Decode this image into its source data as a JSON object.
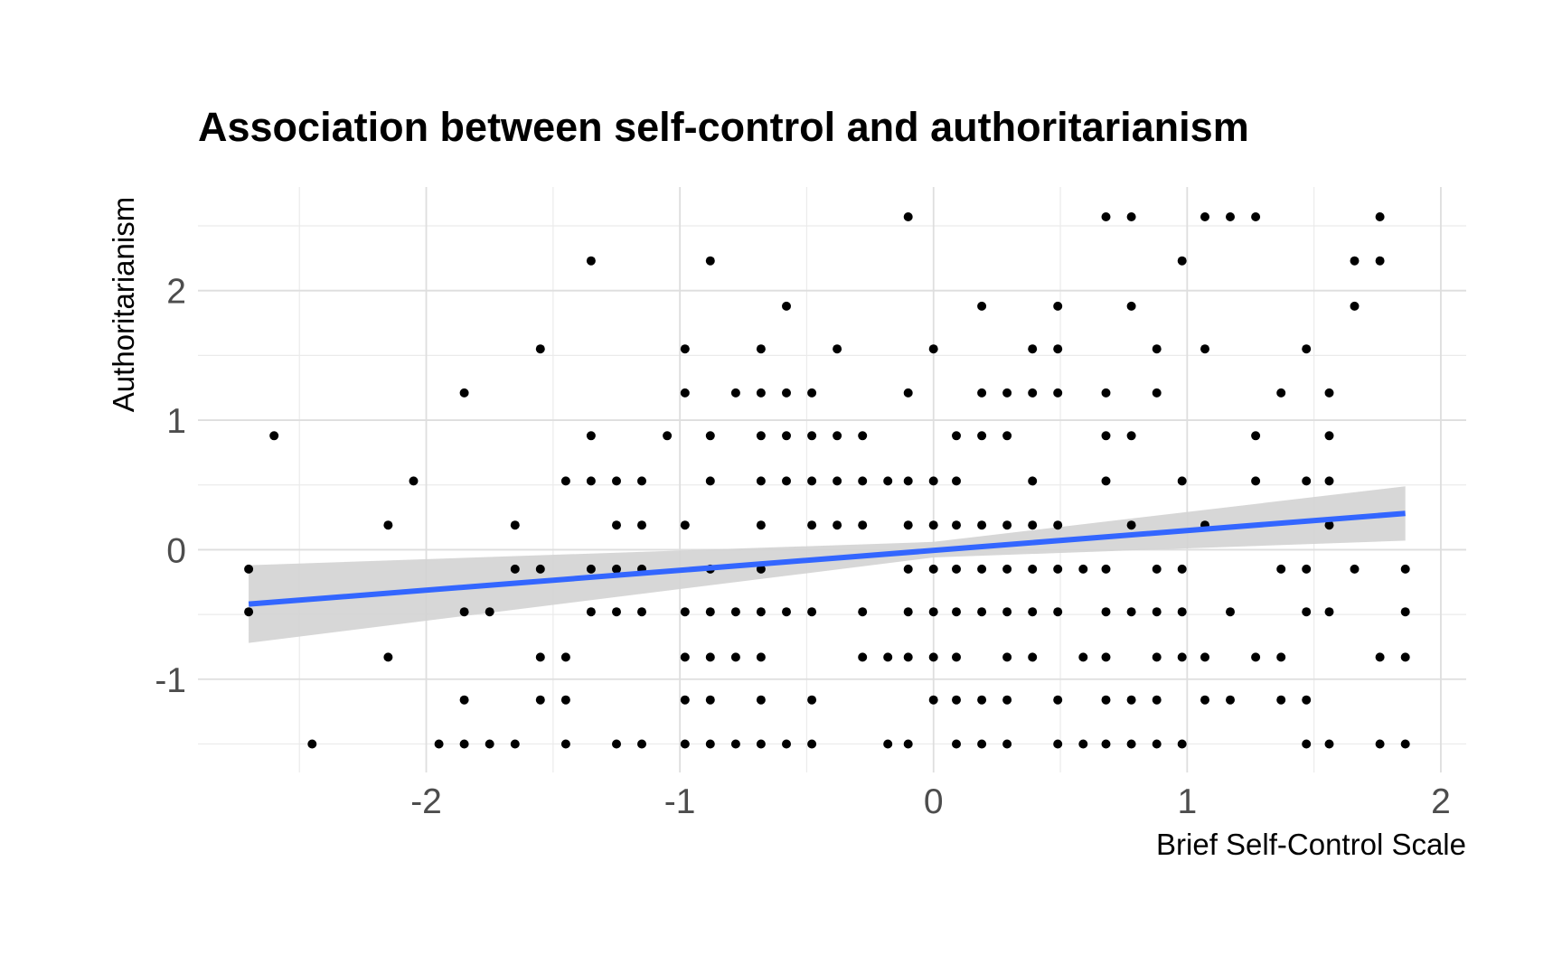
{
  "chart_data": {
    "type": "scatter",
    "title": "Association between self-control and authoritarianism",
    "xlabel": "Brief Self-Control Scale",
    "ylabel": "Authoritarianism",
    "xlim": [
      -2.9,
      2.1
    ],
    "ylim": [
      -1.72,
      2.8
    ],
    "x_ticks": [
      {
        "value": -2,
        "label": "-2"
      },
      {
        "value": -1,
        "label": "-1"
      },
      {
        "value": 0,
        "label": "0"
      },
      {
        "value": 1,
        "label": "1"
      },
      {
        "value": 2,
        "label": "2"
      }
    ],
    "y_ticks": [
      {
        "value": -1,
        "label": "-1"
      },
      {
        "value": 0,
        "label": "0"
      },
      {
        "value": 1,
        "label": "1"
      },
      {
        "value": 2,
        "label": "2"
      }
    ],
    "x_minor": [
      -2.5,
      -1.5,
      -0.5,
      0.5,
      1.5
    ],
    "y_minor": [
      -1.5,
      -0.5,
      0.5,
      1.5,
      2.5
    ],
    "grid": true,
    "point_color": "#000000",
    "points": [
      [
        -2.7,
        -0.15
      ],
      [
        -2.7,
        -0.48
      ],
      [
        -2.6,
        0.88
      ],
      [
        -2.45,
        -1.5
      ],
      [
        -2.15,
        0.19
      ],
      [
        -2.15,
        -0.83
      ],
      [
        -2.05,
        0.53
      ],
      [
        -1.95,
        -1.5
      ],
      [
        -1.85,
        1.21
      ],
      [
        -1.85,
        -0.48
      ],
      [
        -1.85,
        -1.16
      ],
      [
        -1.85,
        -1.5
      ],
      [
        -1.75,
        -0.48
      ],
      [
        -1.75,
        -1.5
      ],
      [
        -1.65,
        0.19
      ],
      [
        -1.65,
        -0.15
      ],
      [
        -1.65,
        -1.5
      ],
      [
        -1.55,
        1.55
      ],
      [
        -1.55,
        -0.15
      ],
      [
        -1.55,
        -0.83
      ],
      [
        -1.55,
        -1.16
      ],
      [
        -1.45,
        0.53
      ],
      [
        -1.45,
        -0.83
      ],
      [
        -1.45,
        -1.16
      ],
      [
        -1.45,
        -1.5
      ],
      [
        -1.35,
        2.23
      ],
      [
        -1.35,
        0.88
      ],
      [
        -1.35,
        0.53
      ],
      [
        -1.35,
        -0.15
      ],
      [
        -1.35,
        -0.48
      ],
      [
        -1.25,
        0.53
      ],
      [
        -1.25,
        0.19
      ],
      [
        -1.25,
        -0.15
      ],
      [
        -1.25,
        -0.48
      ],
      [
        -1.25,
        -1.5
      ],
      [
        -1.15,
        0.53
      ],
      [
        -1.15,
        0.19
      ],
      [
        -1.15,
        -0.15
      ],
      [
        -1.15,
        -0.48
      ],
      [
        -1.15,
        -1.5
      ],
      [
        -1.05,
        0.88
      ],
      [
        -0.98,
        1.55
      ],
      [
        -0.98,
        1.21
      ],
      [
        -0.98,
        0.19
      ],
      [
        -0.98,
        -0.48
      ],
      [
        -0.98,
        -0.83
      ],
      [
        -0.98,
        -1.16
      ],
      [
        -0.98,
        -1.5
      ],
      [
        -0.88,
        2.23
      ],
      [
        -0.88,
        0.88
      ],
      [
        -0.88,
        0.53
      ],
      [
        -0.88,
        -0.15
      ],
      [
        -0.88,
        -0.48
      ],
      [
        -0.88,
        -0.83
      ],
      [
        -0.88,
        -1.16
      ],
      [
        -0.88,
        -1.5
      ],
      [
        -0.78,
        1.21
      ],
      [
        -0.78,
        -0.48
      ],
      [
        -0.78,
        -0.83
      ],
      [
        -0.78,
        -1.5
      ],
      [
        -0.68,
        1.55
      ],
      [
        -0.68,
        1.21
      ],
      [
        -0.68,
        0.88
      ],
      [
        -0.68,
        0.53
      ],
      [
        -0.68,
        0.19
      ],
      [
        -0.68,
        -0.15
      ],
      [
        -0.68,
        -0.48
      ],
      [
        -0.68,
        -0.83
      ],
      [
        -0.68,
        -1.16
      ],
      [
        -0.68,
        -1.5
      ],
      [
        -0.58,
        1.88
      ],
      [
        -0.58,
        1.21
      ],
      [
        -0.58,
        0.88
      ],
      [
        -0.58,
        0.53
      ],
      [
        -0.58,
        -0.48
      ],
      [
        -0.58,
        -1.5
      ],
      [
        -0.48,
        1.21
      ],
      [
        -0.48,
        0.88
      ],
      [
        -0.48,
        0.53
      ],
      [
        -0.48,
        0.19
      ],
      [
        -0.48,
        -0.48
      ],
      [
        -0.48,
        -1.16
      ],
      [
        -0.48,
        -1.5
      ],
      [
        -0.38,
        1.55
      ],
      [
        -0.38,
        0.88
      ],
      [
        -0.38,
        0.53
      ],
      [
        -0.38,
        0.19
      ],
      [
        -0.28,
        0.88
      ],
      [
        -0.28,
        0.53
      ],
      [
        -0.28,
        0.19
      ],
      [
        -0.28,
        -0.48
      ],
      [
        -0.28,
        -0.83
      ],
      [
        -0.18,
        0.53
      ],
      [
        -0.18,
        -0.83
      ],
      [
        -0.18,
        -1.5
      ],
      [
        -0.1,
        2.57
      ],
      [
        -0.1,
        1.21
      ],
      [
        -0.1,
        0.53
      ],
      [
        -0.1,
        0.19
      ],
      [
        -0.1,
        -0.15
      ],
      [
        -0.1,
        -0.48
      ],
      [
        -0.1,
        -0.83
      ],
      [
        -0.1,
        -1.5
      ],
      [
        0.0,
        1.55
      ],
      [
        0.0,
        0.53
      ],
      [
        0.0,
        0.19
      ],
      [
        0.0,
        -0.15
      ],
      [
        0.0,
        -0.48
      ],
      [
        0.0,
        -0.83
      ],
      [
        0.0,
        -1.16
      ],
      [
        0.09,
        0.88
      ],
      [
        0.09,
        0.53
      ],
      [
        0.09,
        0.19
      ],
      [
        0.09,
        -0.15
      ],
      [
        0.09,
        -0.48
      ],
      [
        0.09,
        -0.83
      ],
      [
        0.09,
        -1.16
      ],
      [
        0.09,
        -1.5
      ],
      [
        0.19,
        1.88
      ],
      [
        0.19,
        1.21
      ],
      [
        0.19,
        0.88
      ],
      [
        0.19,
        0.19
      ],
      [
        0.19,
        -0.15
      ],
      [
        0.19,
        -0.48
      ],
      [
        0.19,
        -1.16
      ],
      [
        0.19,
        -1.5
      ],
      [
        0.29,
        1.21
      ],
      [
        0.29,
        0.88
      ],
      [
        0.29,
        0.19
      ],
      [
        0.29,
        -0.15
      ],
      [
        0.29,
        -0.48
      ],
      [
        0.29,
        -0.83
      ],
      [
        0.29,
        -1.16
      ],
      [
        0.29,
        -1.5
      ],
      [
        0.39,
        1.55
      ],
      [
        0.39,
        1.21
      ],
      [
        0.39,
        0.53
      ],
      [
        0.39,
        0.19
      ],
      [
        0.39,
        -0.15
      ],
      [
        0.39,
        -0.48
      ],
      [
        0.39,
        -0.83
      ],
      [
        0.49,
        1.88
      ],
      [
        0.49,
        1.55
      ],
      [
        0.49,
        1.21
      ],
      [
        0.49,
        0.19
      ],
      [
        0.49,
        -0.15
      ],
      [
        0.49,
        -0.48
      ],
      [
        0.49,
        -1.16
      ],
      [
        0.49,
        -1.5
      ],
      [
        0.59,
        -0.15
      ],
      [
        0.59,
        -0.83
      ],
      [
        0.59,
        -1.5
      ],
      [
        0.68,
        2.57
      ],
      [
        0.68,
        1.21
      ],
      [
        0.68,
        0.88
      ],
      [
        0.68,
        0.53
      ],
      [
        0.68,
        -0.15
      ],
      [
        0.68,
        -0.48
      ],
      [
        0.68,
        -0.83
      ],
      [
        0.68,
        -1.16
      ],
      [
        0.68,
        -1.5
      ],
      [
        0.78,
        2.57
      ],
      [
        0.78,
        1.88
      ],
      [
        0.78,
        0.88
      ],
      [
        0.78,
        0.19
      ],
      [
        0.78,
        -0.48
      ],
      [
        0.78,
        -1.16
      ],
      [
        0.78,
        -1.5
      ],
      [
        0.88,
        1.55
      ],
      [
        0.88,
        1.21
      ],
      [
        0.88,
        -0.15
      ],
      [
        0.88,
        -0.48
      ],
      [
        0.88,
        -0.83
      ],
      [
        0.88,
        -1.16
      ],
      [
        0.88,
        -1.5
      ],
      [
        0.98,
        2.23
      ],
      [
        0.98,
        0.53
      ],
      [
        0.98,
        -0.15
      ],
      [
        0.98,
        -0.48
      ],
      [
        0.98,
        -0.83
      ],
      [
        0.98,
        -1.5
      ],
      [
        1.07,
        2.57
      ],
      [
        1.07,
        1.55
      ],
      [
        1.07,
        0.19
      ],
      [
        1.07,
        -0.83
      ],
      [
        1.07,
        -1.16
      ],
      [
        1.17,
        2.57
      ],
      [
        1.17,
        -0.48
      ],
      [
        1.17,
        -1.16
      ],
      [
        1.27,
        2.57
      ],
      [
        1.27,
        0.88
      ],
      [
        1.27,
        0.53
      ],
      [
        1.27,
        -0.83
      ],
      [
        1.37,
        1.21
      ],
      [
        1.37,
        -0.15
      ],
      [
        1.37,
        -0.83
      ],
      [
        1.37,
        -1.16
      ],
      [
        1.47,
        1.55
      ],
      [
        1.47,
        0.53
      ],
      [
        1.47,
        -0.15
      ],
      [
        1.47,
        -0.48
      ],
      [
        1.47,
        -1.16
      ],
      [
        1.47,
        -1.5
      ],
      [
        1.56,
        1.21
      ],
      [
        1.56,
        0.88
      ],
      [
        1.56,
        0.53
      ],
      [
        1.56,
        0.19
      ],
      [
        1.56,
        -0.48
      ],
      [
        1.56,
        -1.5
      ],
      [
        1.66,
        2.23
      ],
      [
        1.66,
        1.88
      ],
      [
        1.66,
        -0.15
      ],
      [
        1.76,
        2.57
      ],
      [
        1.76,
        2.23
      ],
      [
        1.76,
        -0.83
      ],
      [
        1.76,
        -1.5
      ],
      [
        1.86,
        -0.15
      ],
      [
        1.86,
        -0.48
      ],
      [
        1.86,
        -0.83
      ],
      [
        1.86,
        -1.5
      ]
    ],
    "fit": {
      "method": "linear",
      "color": "#3366ff",
      "band_color": "#d3d3d3",
      "line": [
        [
          -2.7,
          -0.42
        ],
        [
          1.86,
          0.28
        ]
      ],
      "band_lower": [
        [
          -2.7,
          -0.72
        ],
        [
          0.0,
          -0.06
        ],
        [
          1.86,
          0.07
        ]
      ],
      "band_upper": [
        [
          -2.7,
          -0.12
        ],
        [
          0.0,
          0.06
        ],
        [
          1.86,
          0.49
        ]
      ]
    }
  }
}
